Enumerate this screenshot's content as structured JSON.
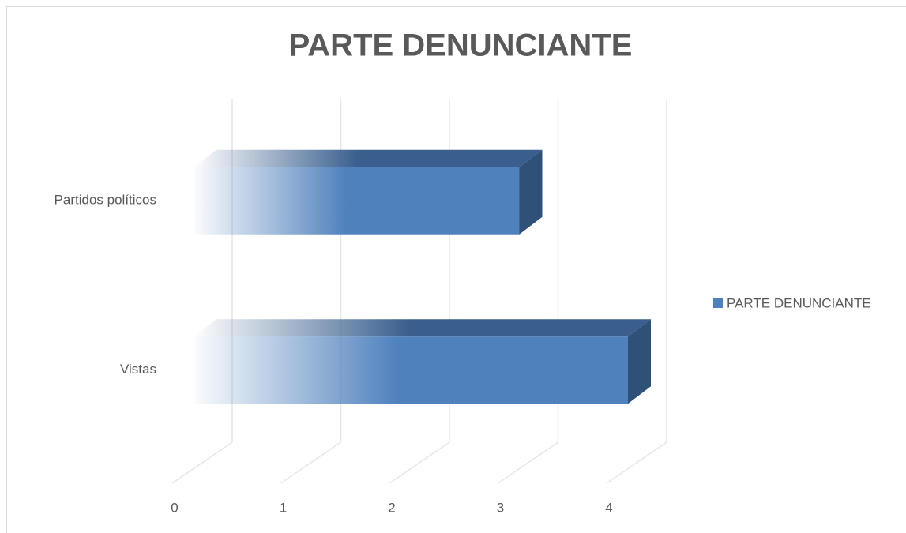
{
  "chart_data": {
    "type": "bar3d_horizontal",
    "title": "PARTE DENUNCIANTE",
    "categories": [
      "Partidos políticos",
      "Vistas"
    ],
    "series": [
      {
        "name": "PARTE DENUNCIANTE",
        "color": "#4f81bd",
        "values": [
          3,
          4
        ]
      }
    ],
    "xlim": [
      0,
      4
    ],
    "xticks": [
      0,
      1,
      2,
      3,
      4
    ],
    "grid": true,
    "legend": "right"
  }
}
